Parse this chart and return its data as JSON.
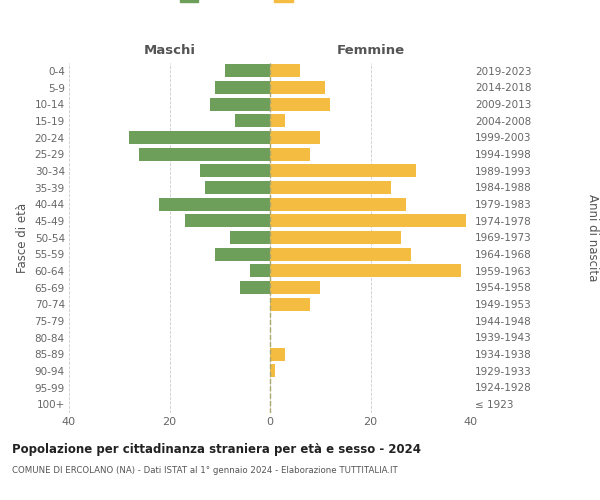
{
  "age_groups": [
    "100+",
    "95-99",
    "90-94",
    "85-89",
    "80-84",
    "75-79",
    "70-74",
    "65-69",
    "60-64",
    "55-59",
    "50-54",
    "45-49",
    "40-44",
    "35-39",
    "30-34",
    "25-29",
    "20-24",
    "15-19",
    "10-14",
    "5-9",
    "0-4"
  ],
  "birth_years": [
    "≤ 1923",
    "1924-1928",
    "1929-1933",
    "1934-1938",
    "1939-1943",
    "1944-1948",
    "1949-1953",
    "1954-1958",
    "1959-1963",
    "1964-1968",
    "1969-1973",
    "1974-1978",
    "1979-1983",
    "1984-1988",
    "1989-1993",
    "1994-1998",
    "1999-2003",
    "2004-2008",
    "2009-2013",
    "2014-2018",
    "2019-2023"
  ],
  "maschi": [
    0,
    0,
    0,
    0,
    0,
    0,
    0,
    6,
    4,
    11,
    8,
    17,
    22,
    13,
    14,
    26,
    28,
    7,
    12,
    11,
    9
  ],
  "femmine": [
    0,
    0,
    1,
    3,
    0,
    0,
    8,
    10,
    38,
    28,
    26,
    39,
    27,
    24,
    29,
    8,
    10,
    3,
    12,
    11,
    6
  ],
  "maschi_color": "#6d9e5a",
  "femmine_color": "#f5bc42",
  "background_color": "#ffffff",
  "grid_color": "#cccccc",
  "title": "Popolazione per cittadinanza straniera per età e sesso - 2024",
  "subtitle": "COMUNE DI ERCOLANO (NA) - Dati ISTAT al 1° gennaio 2024 - Elaborazione TUTTITALIA.IT",
  "ylabel_left": "Fasce di età",
  "ylabel_right": "Anni di nascita",
  "xlabel_maschi": "Maschi",
  "xlabel_femmine": "Femmine",
  "xlim": 40
}
